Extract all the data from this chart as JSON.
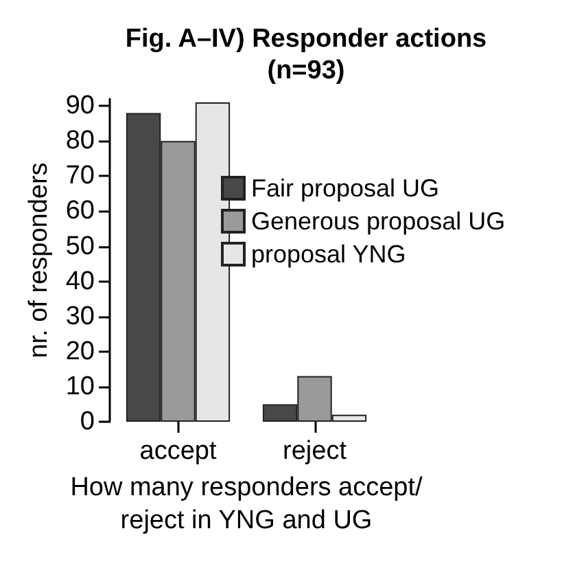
{
  "chart_data": {
    "type": "bar",
    "title": "Fig. A–IV) Responder actions\n(n=93)",
    "xlabel": "How many responders accept/\nreject in YNG and UG",
    "ylabel": "nr. of responders",
    "categories": [
      "accept",
      "reject"
    ],
    "series": [
      {
        "name": "Fair proposal UG",
        "color": "#484848",
        "values": [
          88,
          5
        ]
      },
      {
        "name": "Generous proposal UG",
        "color": "#9a9a9a",
        "values": [
          80,
          13
        ]
      },
      {
        "name": "proposal YNG",
        "color": "#e6e6e6",
        "values": [
          91,
          2
        ]
      }
    ],
    "ylim": [
      0,
      92
    ],
    "yticks": [
      0,
      10,
      20,
      30,
      40,
      50,
      60,
      70,
      80,
      90
    ],
    "grid": false,
    "legend": "right"
  }
}
